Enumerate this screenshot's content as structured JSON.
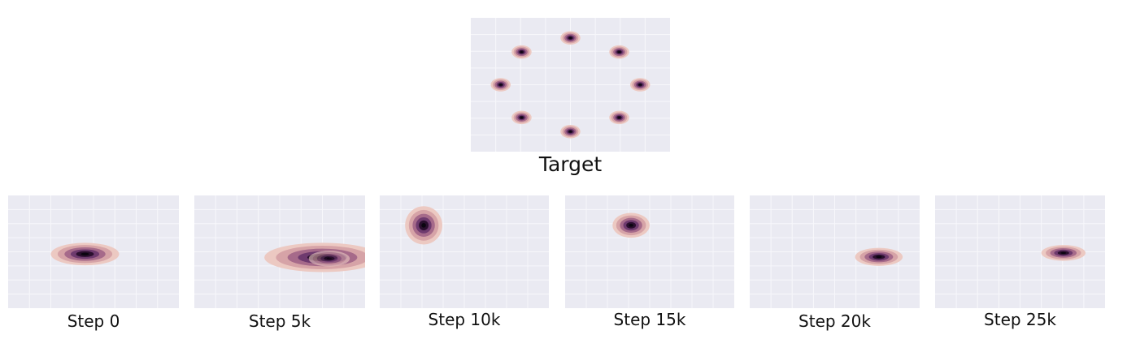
{
  "colors": {
    "panel_bg": "#eaeaf2",
    "grid": "#f7f7fb",
    "density_outer": "#ecc9c2",
    "density_mid1": "#d6a3a7",
    "density_mid2": "#a66a8a",
    "density_mid3": "#6e3a6e",
    "density_inner": "#2a0f2e",
    "density_core": "#0b0510"
  },
  "chart_data": [
    {
      "type": "contour",
      "title": "Target",
      "xlim": [
        -1,
        1
      ],
      "ylim": [
        -1,
        1
      ],
      "grid": true,
      "modes": [
        {
          "x": 0.0,
          "y": 0.7,
          "sx": 0.05,
          "sy": 0.05,
          "w": 1
        },
        {
          "x": 0.49,
          "y": 0.49,
          "sx": 0.05,
          "sy": 0.05,
          "w": 1
        },
        {
          "x": 0.7,
          "y": 0.0,
          "sx": 0.05,
          "sy": 0.05,
          "w": 1
        },
        {
          "x": 0.49,
          "y": -0.49,
          "sx": 0.05,
          "sy": 0.05,
          "w": 1
        },
        {
          "x": 0.0,
          "y": -0.7,
          "sx": 0.05,
          "sy": 0.05,
          "w": 1
        },
        {
          "x": -0.49,
          "y": -0.49,
          "sx": 0.05,
          "sy": 0.05,
          "w": 1
        },
        {
          "x": -0.7,
          "y": 0.0,
          "sx": 0.05,
          "sy": 0.05,
          "w": 1
        },
        {
          "x": -0.49,
          "y": 0.49,
          "sx": 0.05,
          "sy": 0.05,
          "w": 1
        }
      ]
    },
    {
      "type": "contour",
      "title": "Step 0",
      "xlim": [
        -1,
        1
      ],
      "ylim": [
        -1,
        1
      ],
      "grid": true,
      "modes": [
        {
          "x": -0.1,
          "y": -0.04,
          "sx": 0.2,
          "sy": 0.1,
          "w": 1
        }
      ]
    },
    {
      "type": "contour",
      "title": "Step 5k",
      "xlim": [
        -1,
        1
      ],
      "ylim": [
        -1,
        1
      ],
      "grid": true,
      "modes": [
        {
          "x": 0.5,
          "y": -0.1,
          "sx": 0.34,
          "sy": 0.13,
          "w": 1
        },
        {
          "x": 0.58,
          "y": -0.12,
          "sx": 0.12,
          "sy": 0.07,
          "w": 0.6
        }
      ]
    },
    {
      "type": "contour",
      "title": "Step 10k",
      "xlim": [
        -1,
        1
      ],
      "ylim": [
        -1,
        1
      ],
      "grid": true,
      "modes": [
        {
          "x": -0.48,
          "y": 0.47,
          "sx": 0.11,
          "sy": 0.17,
          "w": 1
        }
      ]
    },
    {
      "type": "contour",
      "title": "Step 15k",
      "xlim": [
        -1,
        1
      ],
      "ylim": [
        -1,
        1
      ],
      "grid": true,
      "modes": [
        {
          "x": -0.22,
          "y": 0.47,
          "sx": 0.11,
          "sy": 0.11,
          "w": 1
        }
      ]
    },
    {
      "type": "contour",
      "title": "Step 20k",
      "xlim": [
        -1,
        1
      ],
      "ylim": [
        -1,
        1
      ],
      "grid": true,
      "modes": [
        {
          "x": 0.52,
          "y": -0.09,
          "sx": 0.14,
          "sy": 0.08,
          "w": 1
        }
      ]
    },
    {
      "type": "contour",
      "title": "Step 25k",
      "xlim": [
        -1,
        1
      ],
      "ylim": [
        -1,
        1
      ],
      "grid": true,
      "modes": [
        {
          "x": 0.51,
          "y": -0.02,
          "sx": 0.13,
          "sy": 0.07,
          "w": 1
        }
      ]
    }
  ]
}
